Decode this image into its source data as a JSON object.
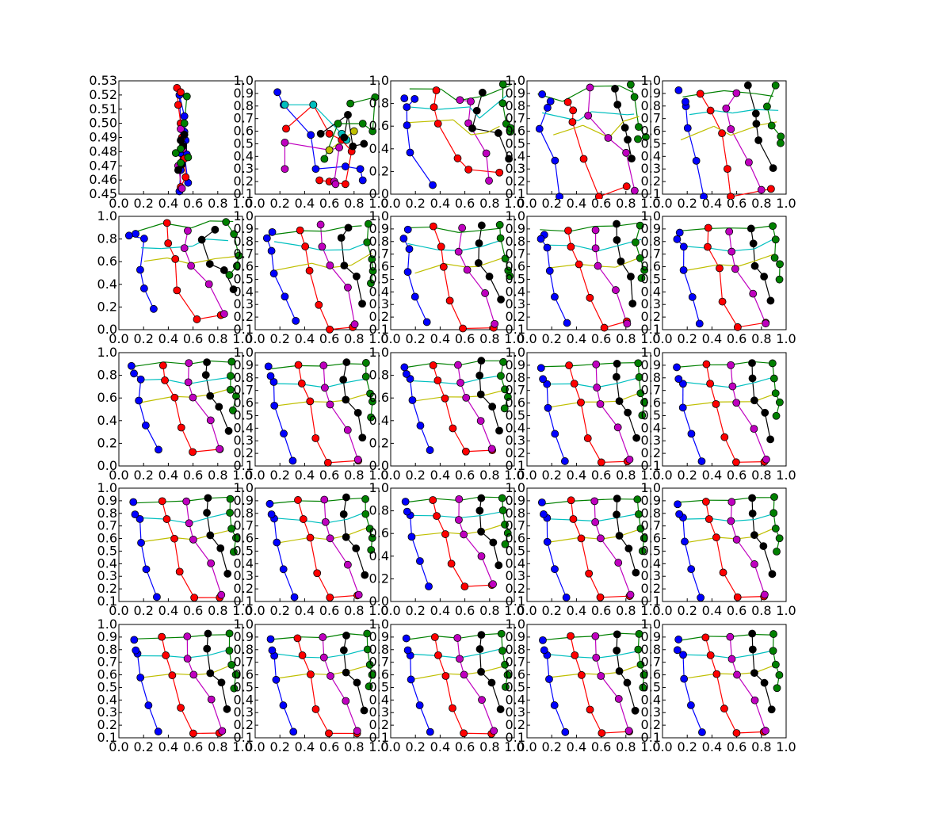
{
  "figure": {
    "title": "",
    "colors": {
      "blue": "#0000ff",
      "red": "#ff0000",
      "magenta": "#bf00bf",
      "cyan": "#00bfbf",
      "yellow": "#bfbf00",
      "black": "#000000",
      "green": "#008000",
      "marker_edge": "#000000",
      "axes": "#000000",
      "background": "#ffffff"
    }
  },
  "chart_data": [
    {
      "type": "scatter",
      "panel": 1,
      "xlim": [
        0,
        1
      ],
      "ylim": [
        0.45,
        0.53
      ],
      "xticks": [
        "0.0",
        "0.2",
        "0.4",
        "0.6",
        "0.8",
        "1.0"
      ],
      "yticks": [
        "0.45",
        "0.46",
        "0.47",
        "0.48",
        "0.49",
        "0.50",
        "0.51",
        "0.52",
        "0.53"
      ],
      "series": [
        {
          "color": "blue",
          "points": [
            [
              0.49,
              0.452
            ],
            [
              0.5,
              0.467
            ],
            [
              0.5,
              0.479
            ],
            [
              0.52,
              0.489
            ],
            [
              0.53,
              0.494
            ],
            [
              0.54,
              0.488
            ],
            [
              0.5,
              0.5
            ],
            [
              0.49,
              0.52
            ],
            [
              0.53,
              0.505
            ],
            [
              0.55,
              0.478
            ],
            [
              0.52,
              0.485
            ],
            [
              0.56,
              0.458
            ]
          ],
          "edges": [
            [
              0,
              1
            ],
            [
              1,
              2
            ],
            [
              2,
              3
            ],
            [
              3,
              4
            ],
            [
              4,
              5
            ],
            [
              5,
              3
            ],
            [
              2,
              6
            ],
            [
              6,
              7
            ],
            [
              7,
              8
            ],
            [
              8,
              9
            ],
            [
              9,
              10
            ],
            [
              10,
              11
            ]
          ]
        },
        {
          "color": "red",
          "points": [
            [
              0.47,
              0.525
            ],
            [
              0.48,
              0.513
            ],
            [
              0.5,
              0.5
            ],
            [
              0.51,
              0.49
            ],
            [
              0.49,
              0.47
            ],
            [
              0.5,
              0.455
            ],
            [
              0.53,
              0.475
            ],
            [
              0.54,
              0.462
            ],
            [
              0.5,
              0.522
            ]
          ],
          "edges": [
            [
              0,
              1
            ],
            [
              1,
              2
            ],
            [
              2,
              3
            ],
            [
              3,
              4
            ],
            [
              4,
              5
            ],
            [
              3,
              6
            ],
            [
              6,
              7
            ],
            [
              7,
              5
            ],
            [
              0,
              8
            ]
          ]
        },
        {
          "color": "magenta",
          "points": [
            [
              0.5,
              0.496
            ],
            [
              0.52,
              0.482
            ],
            [
              0.48,
              0.47
            ],
            [
              0.51,
              0.454
            ]
          ],
          "edges": [
            [
              0,
              1
            ],
            [
              1,
              2
            ],
            [
              2,
              3
            ]
          ]
        },
        {
          "color": "black",
          "points": [
            [
              0.5,
              0.488
            ],
            [
              0.52,
              0.484
            ],
            [
              0.48,
              0.467
            ],
            [
              0.51,
              0.471
            ],
            [
              0.53,
              0.492
            ]
          ],
          "edges": [
            [
              0,
              1
            ],
            [
              1,
              2
            ],
            [
              2,
              3
            ],
            [
              0,
              4
            ]
          ]
        },
        {
          "color": "green",
          "points": [
            [
              0.55,
              0.519
            ],
            [
              0.53,
              0.5
            ],
            [
              0.5,
              0.482
            ],
            [
              0.46,
              0.479
            ],
            [
              0.56,
              0.476
            ],
            [
              0.5,
              0.472
            ]
          ],
          "edges": [
            [
              0,
              1
            ],
            [
              1,
              2
            ],
            [
              2,
              3
            ],
            [
              2,
              4
            ],
            [
              4,
              5
            ]
          ]
        }
      ]
    },
    {
      "type": "scatter",
      "panel": 2,
      "xlim": [
        0,
        1
      ],
      "ylim": [
        0.1,
        1.0
      ],
      "xticks": [
        "0.0",
        "0.2",
        "0.4",
        "0.6",
        "0.8",
        "1.0"
      ],
      "yticks": [
        "0.1",
        "0.2",
        "0.3",
        "0.4",
        "0.5",
        "0.6",
        "0.7",
        "0.8",
        "0.9",
        "1.0"
      ],
      "series": [
        {
          "color": "blue",
          "points": [
            [
              0.18,
              0.91
            ],
            [
              0.23,
              0.81
            ],
            [
              0.45,
              0.57
            ],
            [
              0.49,
              0.3
            ],
            [
              0.73,
              0.32
            ],
            [
              0.85,
              0.3
            ],
            [
              0.87,
              0.21
            ]
          ],
          "edges": [
            [
              0,
              1
            ],
            [
              1,
              2
            ],
            [
              2,
              3
            ],
            [
              3,
              4
            ],
            [
              4,
              5
            ],
            [
              5,
              6
            ]
          ]
        },
        {
          "color": "red",
          "points": [
            [
              0.25,
              0.62
            ],
            [
              0.47,
              0.81
            ],
            [
              0.6,
              0.58
            ],
            [
              0.7,
              0.53
            ],
            [
              0.78,
              0.44
            ],
            [
              0.73,
              0.18
            ],
            [
              0.6,
              0.2
            ],
            [
              0.52,
              0.21
            ]
          ],
          "edges": [
            [
              0,
              1
            ],
            [
              1,
              2
            ],
            [
              2,
              3
            ],
            [
              3,
              4
            ],
            [
              4,
              5
            ],
            [
              5,
              6
            ],
            [
              6,
              7
            ]
          ]
        },
        {
          "color": "magenta",
          "points": [
            [
              0.24,
              0.51
            ],
            [
              0.24,
              0.3
            ],
            [
              0.6,
              0.45
            ],
            [
              0.68,
              0.47
            ],
            [
              0.64,
              0.2
            ],
            [
              0.65,
              0.18
            ]
          ],
          "edges": [
            [
              0,
              1
            ],
            [
              0,
              2
            ],
            [
              2,
              3
            ],
            [
              3,
              4
            ],
            [
              4,
              5
            ]
          ]
        },
        {
          "color": "cyan",
          "points": [
            [
              0.24,
              0.81
            ],
            [
              0.47,
              0.81
            ],
            [
              0.7,
              0.58
            ],
            [
              0.74,
              0.53
            ]
          ],
          "edges": [
            [
              0,
              1
            ],
            [
              1,
              2
            ],
            [
              2,
              3
            ]
          ]
        },
        {
          "color": "yellow",
          "points": [
            [
              0.6,
              0.45
            ],
            [
              0.8,
              0.6
            ]
          ],
          "edges": [
            [
              0,
              1
            ]
          ]
        },
        {
          "color": "black",
          "points": [
            [
              0.53,
              0.58
            ],
            [
              0.75,
              0.73
            ],
            [
              0.79,
              0.48
            ],
            [
              0.88,
              0.5
            ],
            [
              0.72,
              0.55
            ]
          ],
          "edges": [
            [
              0,
              1
            ],
            [
              1,
              2
            ],
            [
              2,
              3
            ],
            [
              1,
              4
            ]
          ]
        },
        {
          "color": "green",
          "points": [
            [
              0.77,
              0.82
            ],
            [
              0.97,
              0.87
            ],
            [
              0.95,
              0.6
            ],
            [
              0.87,
              0.66
            ],
            [
              0.67,
              0.66
            ],
            [
              0.56,
              0.38
            ]
          ],
          "edges": [
            [
              0,
              1
            ],
            [
              1,
              2
            ],
            [
              2,
              3
            ],
            [
              3,
              4
            ],
            [
              4,
              5
            ]
          ]
        }
      ]
    }
  ]
}
